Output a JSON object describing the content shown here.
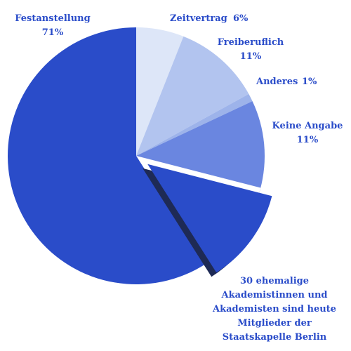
{
  "chart_data": {
    "type": "pie",
    "start_angle_deg": 0,
    "direction": "clockwise",
    "slices": [
      {
        "label": "Zeitvertrag",
        "value_label": "6%",
        "value": 6,
        "color": "#dde6f8"
      },
      {
        "label": "Freiberuflich",
        "value_label": "11%",
        "value": 11,
        "color": "#b2c4ef"
      },
      {
        "label": "Anderes",
        "value_label": "1%",
        "value": 1,
        "color": "#9db3ea"
      },
      {
        "label": "Keine Angabe",
        "value_label": "11%",
        "value": 11,
        "color": "#6a86e0"
      },
      {
        "label": "Festanstellung",
        "value_label": "71%",
        "value": 71,
        "color": "#2a4cc9"
      }
    ],
    "highlight": {
      "slice": "Festanstellung",
      "value": 12,
      "color": "#2a4cc9",
      "shadow_color": "#1e2a55",
      "annotation_lines": [
        "30 ehemalige",
        "Akademistinnen und",
        "Akademisten sind heute",
        "Mitglieder der",
        "Staatskapelle Berlin"
      ]
    },
    "text_color": "#2a4cc9"
  }
}
